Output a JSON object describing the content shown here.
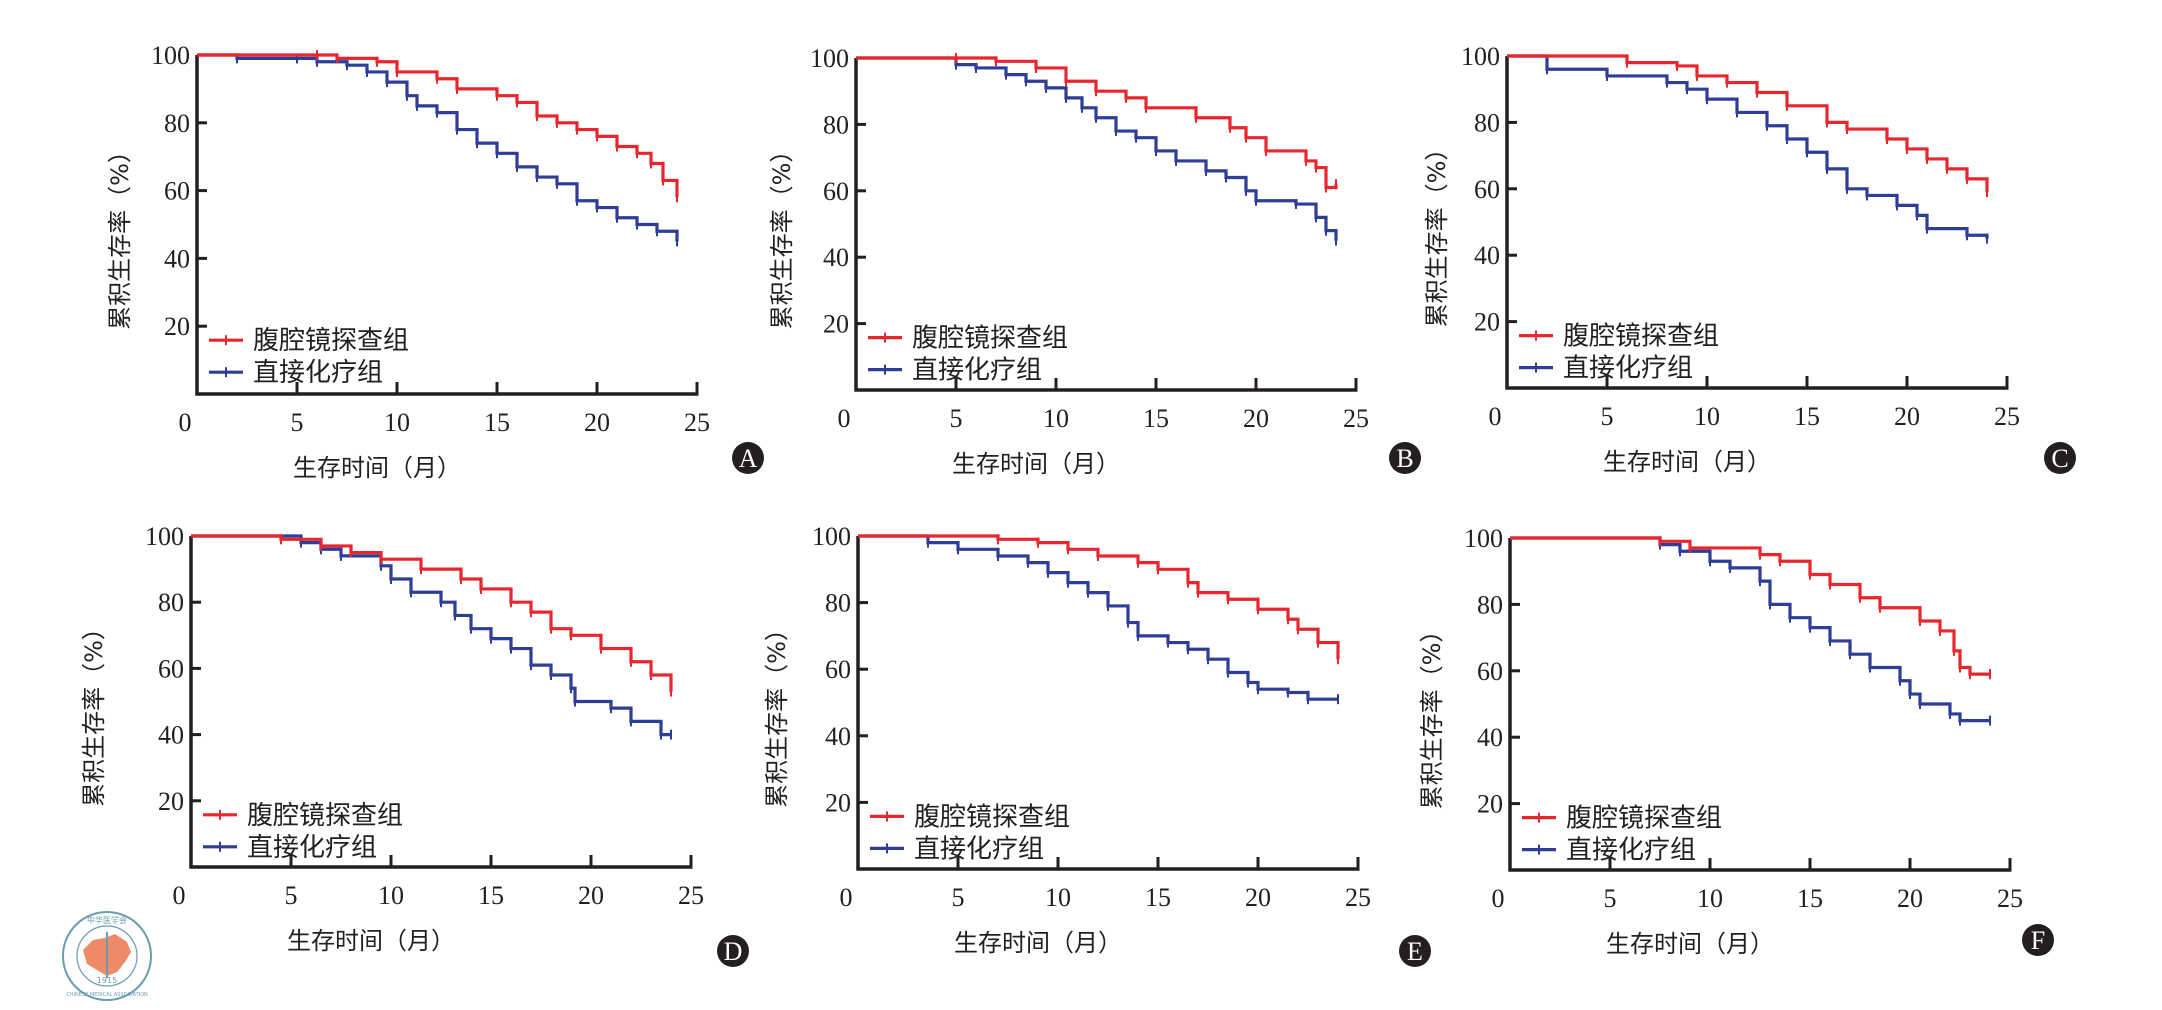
{
  "figure": {
    "logo": {
      "name": "Chinese Medical Association emblem",
      "top_text": "中华医学会",
      "year": "1915",
      "bottom_text": "CHINESE MEDICAL ASSOCIATION",
      "colors": {
        "ring": "#6a9bb0",
        "map": "#ee8a68"
      }
    }
  },
  "chart_data": [
    {
      "type": "line",
      "step": true,
      "panel_label": "A",
      "xlabel": "生存时间（月）",
      "ylabel": "累积生存率（%）",
      "xlim": [
        0,
        25
      ],
      "ylim": [
        0,
        100
      ],
      "xticks": [
        "0",
        "5",
        "10",
        "15",
        "20",
        "25"
      ],
      "yticks": [
        "20",
        "40",
        "60",
        "80",
        "100"
      ],
      "grid": false,
      "legend_position": "bottom-left",
      "series": [
        {
          "name": "腹腔镜探查组",
          "color": "#e8262d",
          "points": [
            [
              0,
              100
            ],
            [
              6,
              100
            ],
            [
              7,
              99
            ],
            [
              9,
              98
            ],
            [
              10,
              95
            ],
            [
              12,
              93
            ],
            [
              13,
              90
            ],
            [
              15,
              88
            ],
            [
              16,
              86
            ],
            [
              17,
              82
            ],
            [
              18,
              80
            ],
            [
              19,
              78
            ],
            [
              20,
              76
            ],
            [
              21,
              73
            ],
            [
              22,
              71
            ],
            [
              22.7,
              68
            ],
            [
              23.3,
              63
            ],
            [
              24,
              58
            ]
          ]
        },
        {
          "name": "直接化疗组",
          "color": "#2e3d97",
          "points": [
            [
              0,
              100
            ],
            [
              2,
              99
            ],
            [
              5,
              99
            ],
            [
              6,
              98
            ],
            [
              7.5,
              97
            ],
            [
              8.5,
              95
            ],
            [
              9.5,
              92
            ],
            [
              10.5,
              88
            ],
            [
              11,
              85
            ],
            [
              12,
              83
            ],
            [
              13,
              78
            ],
            [
              14,
              74
            ],
            [
              15,
              71
            ],
            [
              16,
              67
            ],
            [
              17,
              64
            ],
            [
              18,
              62
            ],
            [
              19,
              57
            ],
            [
              20,
              55
            ],
            [
              21,
              52
            ],
            [
              22,
              50
            ],
            [
              23,
              48
            ],
            [
              24,
              45
            ]
          ]
        }
      ]
    },
    {
      "type": "line",
      "step": true,
      "panel_label": "B",
      "xlabel": "生存时间（月）",
      "ylabel": "累积生存率（%）",
      "xlim": [
        0,
        25
      ],
      "ylim": [
        0,
        100
      ],
      "xticks": [
        "0",
        "5",
        "10",
        "15",
        "20",
        "25"
      ],
      "yticks": [
        "20",
        "40",
        "60",
        "80",
        "100"
      ],
      "grid": false,
      "legend_position": "bottom-left",
      "series": [
        {
          "name": "腹腔镜探查组",
          "color": "#e8262d",
          "points": [
            [
              0,
              100
            ],
            [
              5,
              100
            ],
            [
              7,
              99
            ],
            [
              9,
              97
            ],
            [
              10.5,
              93
            ],
            [
              12,
              90
            ],
            [
              13.5,
              88
            ],
            [
              14.5,
              85
            ],
            [
              17,
              82
            ],
            [
              18.7,
              79
            ],
            [
              19.5,
              76
            ],
            [
              20.5,
              72
            ],
            [
              22.5,
              69
            ],
            [
              23,
              67
            ],
            [
              23.5,
              61
            ],
            [
              24,
              62
            ]
          ]
        },
        {
          "name": "直接化疗组",
          "color": "#2e3d97",
          "points": [
            [
              0,
              100
            ],
            [
              5,
              98
            ],
            [
              6,
              97
            ],
            [
              7.5,
              95
            ],
            [
              8.5,
              93
            ],
            [
              9.5,
              91
            ],
            [
              10.5,
              88
            ],
            [
              11.3,
              85
            ],
            [
              12,
              82
            ],
            [
              13,
              78
            ],
            [
              14,
              76
            ],
            [
              15,
              72
            ],
            [
              16,
              69
            ],
            [
              17.5,
              66
            ],
            [
              18.5,
              64
            ],
            [
              19.5,
              60
            ],
            [
              20,
              57
            ],
            [
              22,
              56
            ],
            [
              23,
              52
            ],
            [
              23.5,
              48
            ],
            [
              24,
              45
            ]
          ]
        }
      ]
    },
    {
      "type": "line",
      "step": true,
      "panel_label": "C",
      "xlabel": "生存时间（月）",
      "ylabel": "累积生存率（%）",
      "xlim": [
        0,
        25
      ],
      "ylim": [
        0,
        100
      ],
      "xticks": [
        "0",
        "5",
        "10",
        "15",
        "20",
        "25"
      ],
      "yticks": [
        "20",
        "40",
        "60",
        "80",
        "100"
      ],
      "grid": false,
      "legend_position": "bottom-left",
      "series": [
        {
          "name": "腹腔镜探查组",
          "color": "#e8262d",
          "points": [
            [
              0,
              100
            ],
            [
              6,
              98
            ],
            [
              8.5,
              97
            ],
            [
              9.5,
              94
            ],
            [
              11,
              92
            ],
            [
              12.5,
              89
            ],
            [
              14,
              85
            ],
            [
              16,
              80
            ],
            [
              17,
              78
            ],
            [
              19,
              75
            ],
            [
              20,
              72
            ],
            [
              21,
              69
            ],
            [
              22,
              66
            ],
            [
              23,
              63
            ],
            [
              24,
              59
            ]
          ]
        },
        {
          "name": "直接化疗组",
          "color": "#2e3d97",
          "points": [
            [
              0,
              100
            ],
            [
              2,
              96
            ],
            [
              5,
              94
            ],
            [
              8,
              92
            ],
            [
              9,
              90
            ],
            [
              10,
              87
            ],
            [
              11.5,
              83
            ],
            [
              13,
              79
            ],
            [
              14,
              75
            ],
            [
              15,
              71
            ],
            [
              16,
              66
            ],
            [
              17,
              60
            ],
            [
              18,
              58
            ],
            [
              19.5,
              55
            ],
            [
              20.5,
              52
            ],
            [
              21,
              48
            ],
            [
              23,
              46
            ],
            [
              24,
              45
            ]
          ]
        }
      ]
    },
    {
      "type": "line",
      "step": true,
      "panel_label": "D",
      "xlabel": "生存时间（月）",
      "ylabel": "累积生存率（%）",
      "xlim": [
        0,
        25
      ],
      "ylim": [
        0,
        100
      ],
      "xticks": [
        "0",
        "5",
        "10",
        "15",
        "20",
        "25"
      ],
      "yticks": [
        "20",
        "40",
        "60",
        "80",
        "100"
      ],
      "grid": false,
      "legend_position": "bottom-left",
      "series": [
        {
          "name": "腹腔镜探查组",
          "color": "#e8262d",
          "points": [
            [
              0,
              100
            ],
            [
              4.5,
              99
            ],
            [
              6.5,
              97
            ],
            [
              8,
              95
            ],
            [
              9.5,
              93
            ],
            [
              11.5,
              90
            ],
            [
              13.5,
              87
            ],
            [
              14.5,
              84
            ],
            [
              16,
              80
            ],
            [
              17,
              77
            ],
            [
              18,
              72
            ],
            [
              19,
              70
            ],
            [
              20.5,
              66
            ],
            [
              22,
              62
            ],
            [
              23,
              58
            ],
            [
              24,
              53
            ]
          ]
        },
        {
          "name": "直接化疗组",
          "color": "#2e3d97",
          "points": [
            [
              0,
              100
            ],
            [
              5.5,
              98
            ],
            [
              6.5,
              96
            ],
            [
              7.5,
              94
            ],
            [
              9.5,
              91
            ],
            [
              10,
              87
            ],
            [
              11,
              83
            ],
            [
              12.5,
              80
            ],
            [
              13.2,
              76
            ],
            [
              14,
              72
            ],
            [
              15,
              69
            ],
            [
              16,
              66
            ],
            [
              17,
              61
            ],
            [
              18,
              58
            ],
            [
              19,
              54
            ],
            [
              19.2,
              50
            ],
            [
              21,
              48
            ],
            [
              22,
              44
            ],
            [
              23.5,
              40
            ],
            [
              24,
              40
            ]
          ]
        }
      ]
    },
    {
      "type": "line",
      "step": true,
      "panel_label": "E",
      "xlabel": "生存时间（月）",
      "ylabel": "累积生存率（%）",
      "xlim": [
        0,
        25
      ],
      "ylim": [
        0,
        100
      ],
      "xticks": [
        "0",
        "5",
        "10",
        "15",
        "20",
        "25"
      ],
      "yticks": [
        "20",
        "40",
        "60",
        "80",
        "100"
      ],
      "grid": false,
      "legend_position": "bottom-left",
      "series": [
        {
          "name": "腹腔镜探查组",
          "color": "#e8262d",
          "points": [
            [
              0,
              100
            ],
            [
              7,
              99
            ],
            [
              9,
              98
            ],
            [
              10.5,
              96
            ],
            [
              12,
              94
            ],
            [
              14,
              92
            ],
            [
              15,
              90
            ],
            [
              16.5,
              86
            ],
            [
              17,
              83
            ],
            [
              18.5,
              81
            ],
            [
              20,
              78
            ],
            [
              21.5,
              75
            ],
            [
              22,
              72
            ],
            [
              23,
              68
            ],
            [
              24,
              63
            ]
          ]
        },
        {
          "name": "直接化疗组",
          "color": "#2e3d97",
          "points": [
            [
              0,
              100
            ],
            [
              3.5,
              98
            ],
            [
              5,
              96
            ],
            [
              7,
              94
            ],
            [
              8.5,
              92
            ],
            [
              9.5,
              89
            ],
            [
              10.5,
              86
            ],
            [
              11.5,
              83
            ],
            [
              12.5,
              79
            ],
            [
              13.5,
              74
            ],
            [
              14,
              70
            ],
            [
              15.5,
              68
            ],
            [
              16.5,
              66
            ],
            [
              17.5,
              63
            ],
            [
              18.5,
              59
            ],
            [
              19.5,
              56
            ],
            [
              20,
              54
            ],
            [
              21.5,
              53
            ],
            [
              22.5,
              51
            ],
            [
              24,
              51
            ]
          ]
        }
      ]
    },
    {
      "type": "line",
      "step": true,
      "panel_label": "F",
      "xlabel": "生存时间（月）",
      "ylabel": "累积生存率（%）",
      "xlim": [
        0,
        25
      ],
      "ylim": [
        0,
        100
      ],
      "xticks": [
        "0",
        "5",
        "10",
        "15",
        "20",
        "25"
      ],
      "yticks": [
        "20",
        "40",
        "60",
        "80",
        "100"
      ],
      "grid": false,
      "legend_position": "bottom-left",
      "series": [
        {
          "name": "腹腔镜探查组",
          "color": "#e8262d",
          "points": [
            [
              0,
              100
            ],
            [
              7.5,
              99
            ],
            [
              9,
              97
            ],
            [
              12.5,
              95
            ],
            [
              13.5,
              93
            ],
            [
              15,
              89
            ],
            [
              16,
              86
            ],
            [
              17.5,
              82
            ],
            [
              18.5,
              79
            ],
            [
              20.5,
              75
            ],
            [
              21.5,
              72
            ],
            [
              22.2,
              66
            ],
            [
              22.5,
              61
            ],
            [
              23,
              59
            ],
            [
              24,
              59
            ]
          ]
        },
        {
          "name": "直接化疗组",
          "color": "#2e3d97",
          "points": [
            [
              0,
              100
            ],
            [
              7.5,
              98
            ],
            [
              8.5,
              96
            ],
            [
              10,
              93
            ],
            [
              11,
              91
            ],
            [
              12.5,
              87
            ],
            [
              13,
              80
            ],
            [
              14,
              76
            ],
            [
              15,
              73
            ],
            [
              16,
              69
            ],
            [
              17,
              65
            ],
            [
              18,
              61
            ],
            [
              19.5,
              57
            ],
            [
              20,
              53
            ],
            [
              20.5,
              50
            ],
            [
              22,
              47
            ],
            [
              22.5,
              45
            ],
            [
              24,
              45
            ]
          ]
        }
      ]
    }
  ]
}
